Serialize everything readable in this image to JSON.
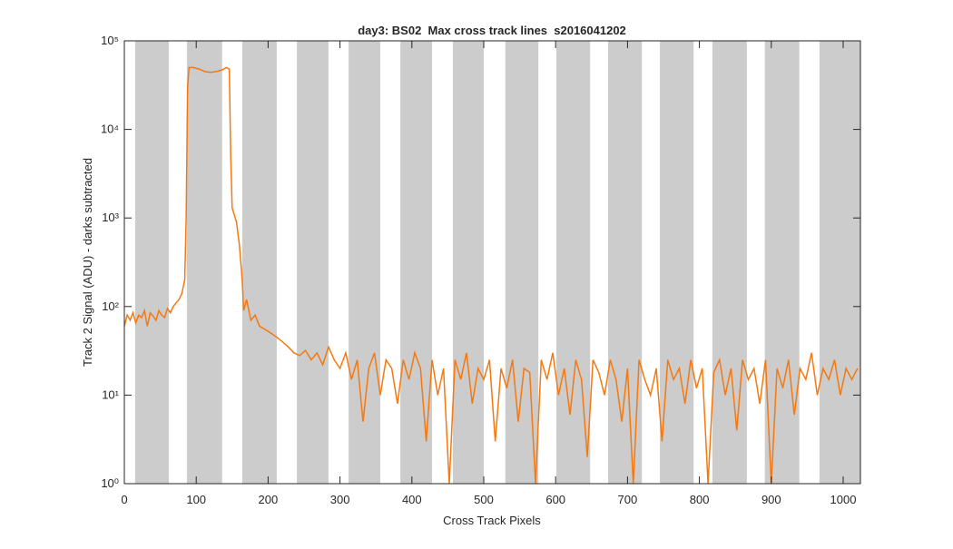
{
  "chart_data": {
    "type": "line",
    "title": "day3: BS02  Max cross track lines  s2016041202",
    "x_label": "Cross Track Pixels",
    "y_label": "Track 2 Signal (ADU) - darks subtracted",
    "xlim": [
      0,
      1024
    ],
    "xticks": [
      0,
      100,
      200,
      300,
      400,
      500,
      600,
      700,
      800,
      900,
      1000
    ],
    "ylim": [
      1,
      100000
    ],
    "y_scale": "log",
    "yticks": [
      {
        "value": 1,
        "label": "10⁰"
      },
      {
        "value": 10,
        "label": "10¹"
      },
      {
        "value": 100,
        "label": "10²"
      },
      {
        "value": 1000,
        "label": "10³"
      },
      {
        "value": 10000,
        "label": "10⁴"
      },
      {
        "value": 100000,
        "label": "10⁵"
      }
    ],
    "shaded_regions": [
      [
        15,
        62
      ],
      [
        87,
        136
      ],
      [
        164,
        212
      ],
      [
        240,
        284
      ],
      [
        312,
        356
      ],
      [
        384,
        428
      ],
      [
        457,
        500
      ],
      [
        530,
        576
      ],
      [
        601,
        648
      ],
      [
        673,
        720
      ],
      [
        745,
        792
      ],
      [
        818,
        866
      ],
      [
        891,
        939
      ],
      [
        967,
        1024
      ]
    ],
    "shaded_color": "#cccccc",
    "series": [
      {
        "color": "#f5790f",
        "x": [
          0,
          4,
          8,
          12,
          16,
          20,
          24,
          28,
          32,
          36,
          40,
          44,
          48,
          52,
          56,
          60,
          64,
          68,
          72,
          76,
          80,
          84,
          86,
          88,
          90,
          96,
          104,
          112,
          120,
          128,
          136,
          142,
          146,
          148,
          150,
          156,
          160,
          164,
          166,
          170,
          176,
          182,
          188,
          196,
          204,
          212,
          220,
          228,
          236,
          244,
          252,
          260,
          268,
          276,
          284,
          292,
          300,
          308,
          316,
          324,
          332,
          340,
          348,
          356,
          364,
          372,
          380,
          388,
          396,
          404,
          412,
          420,
          428,
          436,
          444,
          452,
          460,
          468,
          476,
          484,
          492,
          500,
          508,
          516,
          524,
          532,
          540,
          548,
          556,
          564,
          572,
          580,
          588,
          596,
          604,
          612,
          620,
          628,
          636,
          644,
          652,
          660,
          668,
          676,
          684,
          692,
          700,
          708,
          716,
          724,
          732,
          740,
          748,
          756,
          764,
          772,
          780,
          788,
          796,
          804,
          812,
          820,
          828,
          836,
          844,
          852,
          860,
          868,
          876,
          884,
          892,
          900,
          908,
          916,
          924,
          932,
          940,
          948,
          956,
          964,
          972,
          980,
          988,
          996,
          1004,
          1012,
          1020
        ],
        "values": [
          60,
          80,
          70,
          85,
          65,
          80,
          75,
          90,
          60,
          85,
          78,
          70,
          90,
          80,
          75,
          95,
          85,
          100,
          110,
          120,
          140,
          200,
          1000,
          30000,
          50000,
          50000,
          48000,
          45000,
          44000,
          45000,
          47000,
          50000,
          48000,
          5000,
          1300,
          900,
          500,
          200,
          90,
          120,
          70,
          80,
          60,
          55,
          50,
          45,
          40,
          35,
          30,
          28,
          32,
          25,
          30,
          22,
          35,
          25,
          20,
          30,
          15,
          25,
          5,
          20,
          30,
          10,
          25,
          20,
          8,
          25,
          15,
          30,
          20,
          3,
          25,
          10,
          20,
          1,
          25,
          15,
          30,
          8,
          20,
          15,
          25,
          3,
          20,
          12,
          25,
          5,
          20,
          18,
          1,
          25,
          15,
          30,
          10,
          20,
          6,
          25,
          15,
          2,
          25,
          18,
          10,
          25,
          15,
          5,
          20,
          1,
          25,
          15,
          10,
          20,
          3,
          25,
          15,
          20,
          8,
          25,
          12,
          20,
          1,
          18,
          25,
          10,
          20,
          4,
          25,
          15,
          20,
          8,
          25,
          1,
          20,
          12,
          25,
          6,
          20,
          15,
          30,
          10,
          20,
          15,
          25,
          10,
          20,
          15,
          20
        ]
      }
    ]
  }
}
